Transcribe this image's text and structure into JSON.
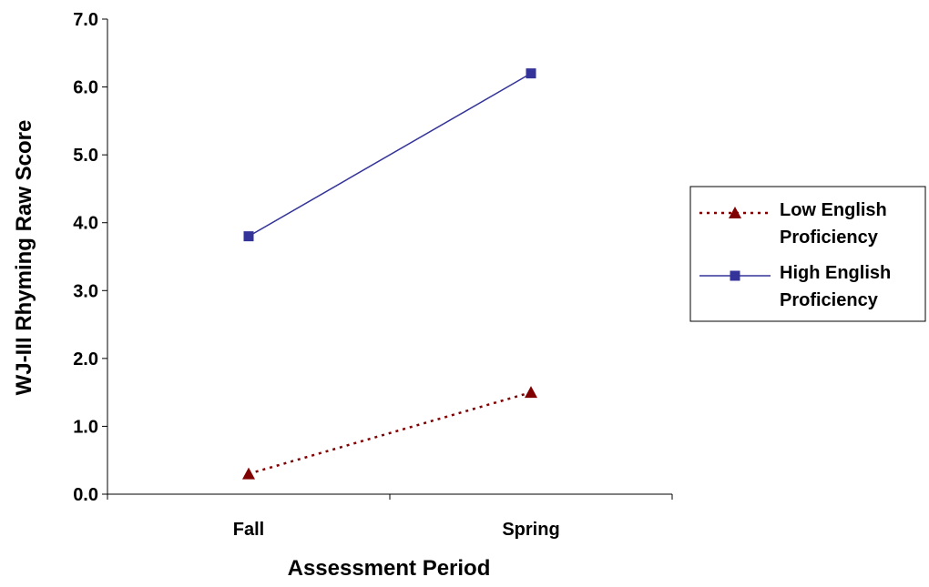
{
  "chart_data": {
    "type": "line",
    "categories": [
      "Fall",
      "Spring"
    ],
    "series": [
      {
        "name": "Low English Proficiency",
        "legend_lines": [
          "Low English",
          "Proficiency"
        ],
        "values": [
          0.3,
          1.5
        ],
        "color": "#800000",
        "line_style": "dotted",
        "marker": "triangle"
      },
      {
        "name": "High English Proficiency",
        "legend_lines": [
          "High English",
          "Proficiency"
        ],
        "values": [
          3.8,
          6.2
        ],
        "color": "#333399",
        "line_style": "solid",
        "marker": "square"
      }
    ],
    "xlabel": "Assessment Period",
    "ylabel": "WJ-III Rhyming Raw Score",
    "ylim": [
      0,
      7
    ],
    "yticks": [
      "0.0",
      "1.0",
      "2.0",
      "3.0",
      "4.0",
      "5.0",
      "6.0",
      "7.0"
    ],
    "grid": false,
    "legend_position": "right"
  }
}
